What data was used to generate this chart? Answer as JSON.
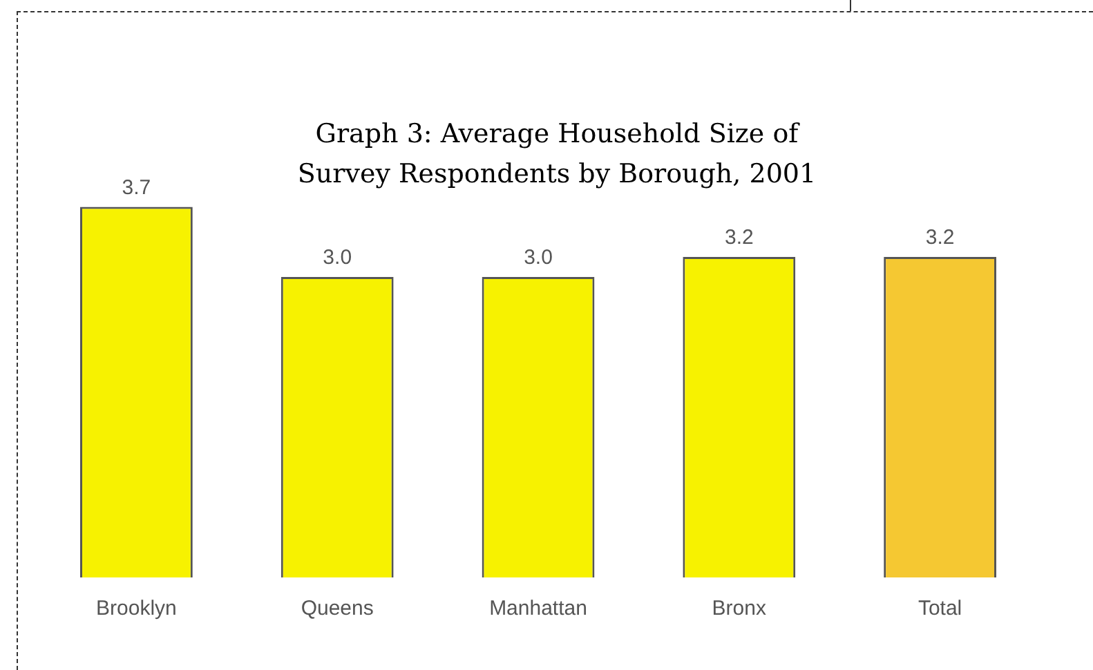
{
  "chart_data": {
    "type": "bar",
    "title": "Graph 3: Average Household Size of Survey Respondents by Borough, 2001",
    "categories": [
      "Brooklyn",
      "Queens",
      "Manhattan",
      "Bronx",
      "Total"
    ],
    "values": [
      3.7,
      3.0,
      3.0,
      3.2,
      3.2
    ],
    "colors": [
      "#f7f200",
      "#f7f200",
      "#f7f200",
      "#f7f200",
      "#f5c832"
    ],
    "value_labels": [
      "3.7",
      "3.0",
      "3.0",
      "3.2",
      "3.2"
    ]
  }
}
